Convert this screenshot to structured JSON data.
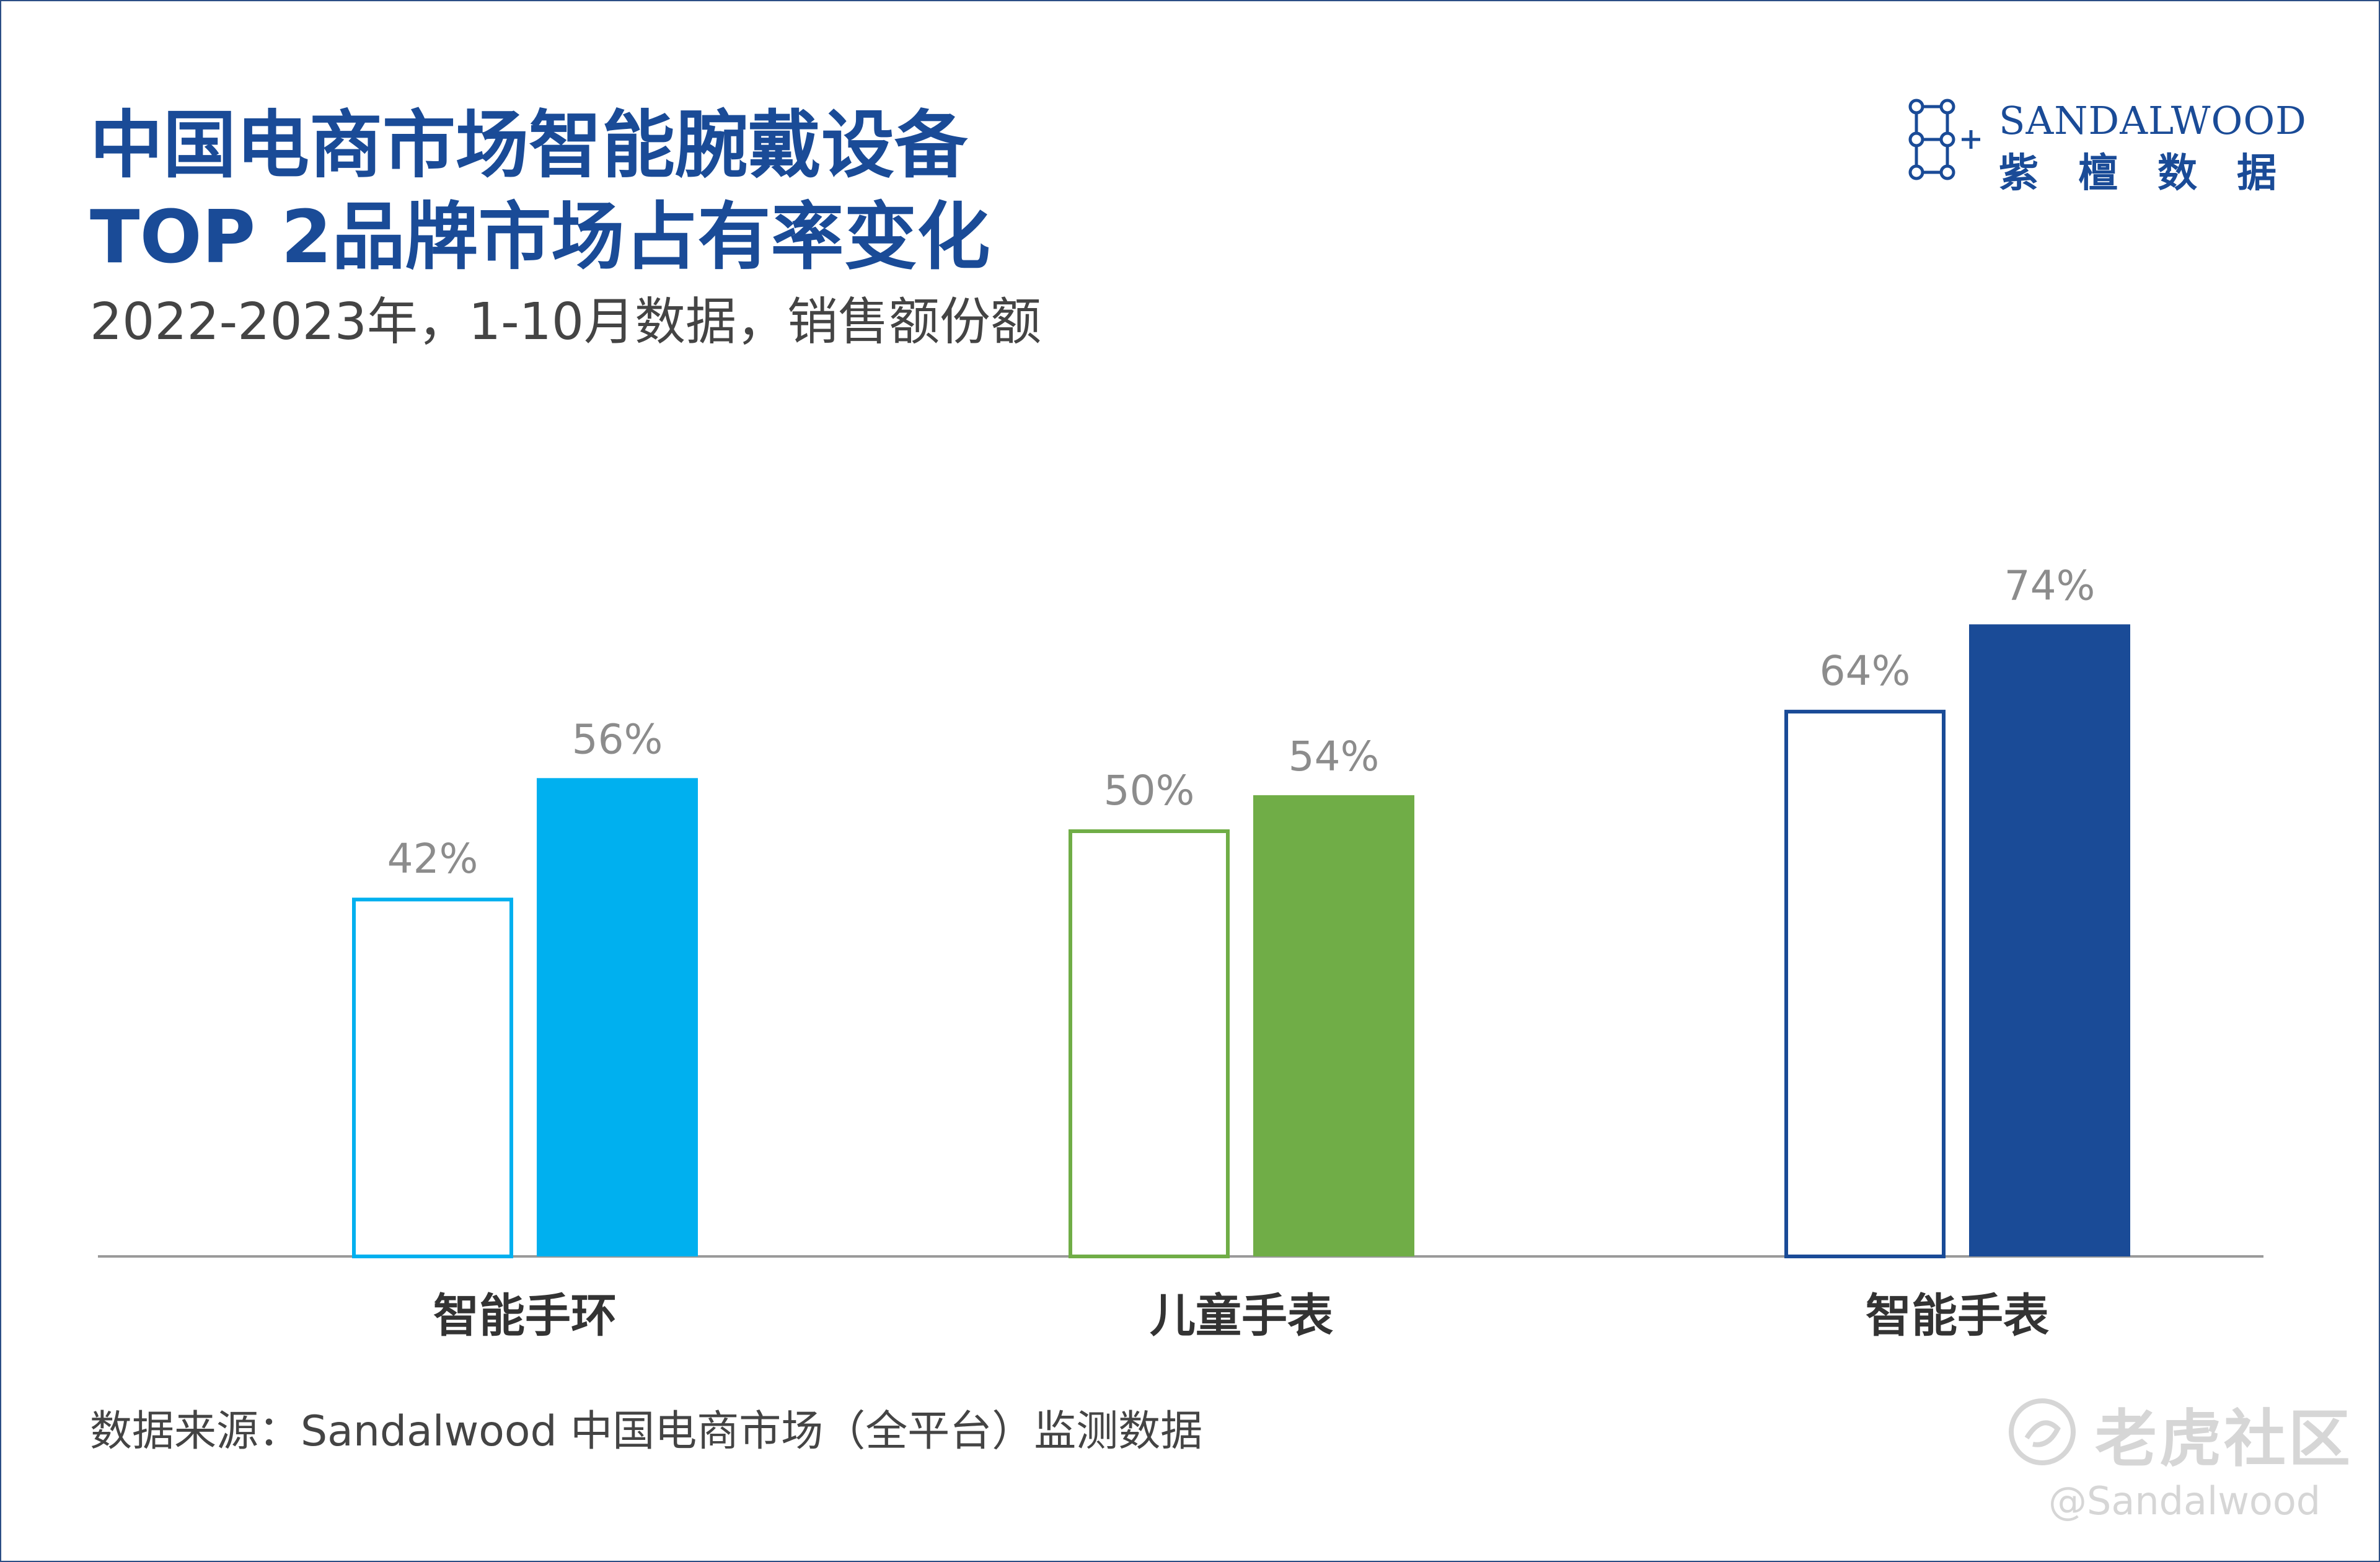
{
  "header": {
    "title_line1": "中国电商市场智能腕戴设备",
    "title_line2": "TOP 2品牌市场占有率变化",
    "subtitle": "2022-2023年，1-10月数据，销售额份额"
  },
  "logo": {
    "en": "SANDALWOOD",
    "cn": "紫檀数据",
    "icon": "network-nodes-icon"
  },
  "footer": {
    "source": "数据来源：Sandalwood 中国电商市场（全平台）监测数据"
  },
  "watermark": {
    "cn": "老虎社区",
    "en": "@Sandalwood",
    "icon": "tiger-logo-icon"
  },
  "chart_data": {
    "type": "bar",
    "categories": [
      "智能手环",
      "儿童手表",
      "智能手表"
    ],
    "series": [
      {
        "values": [
          42,
          50,
          64
        ],
        "style": "outline"
      },
      {
        "values": [
          56,
          54,
          74
        ],
        "style": "filled"
      }
    ],
    "value_labels": [
      [
        "42%",
        "56%"
      ],
      [
        "50%",
        "54%"
      ],
      [
        "64%",
        "74%"
      ]
    ],
    "category_colors": [
      "#00b0ef",
      "#70ad47",
      "#1a4b97"
    ],
    "value_label_color": "#8c8c8c",
    "ylim": [
      0,
      100
    ],
    "grid": false,
    "legend": "none"
  }
}
